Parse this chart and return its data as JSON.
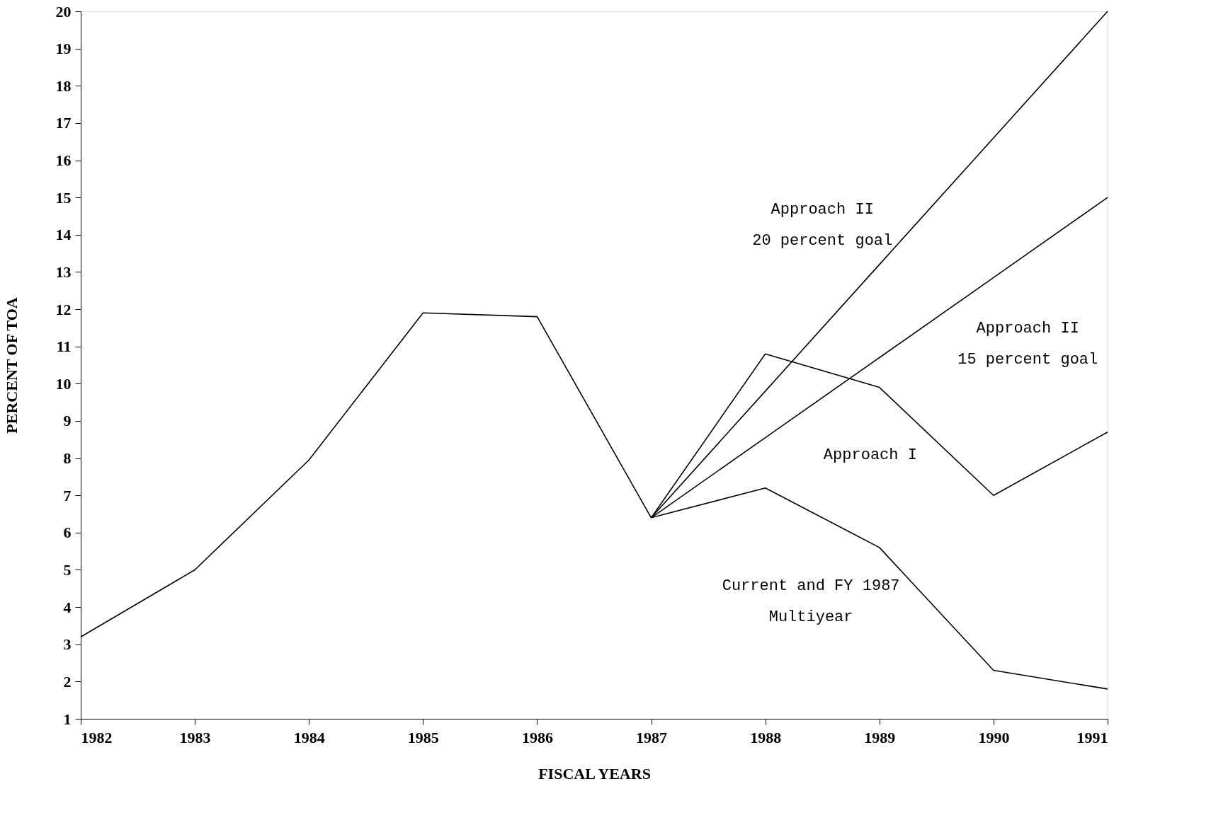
{
  "chart_data": {
    "type": "line",
    "xlabel": "FISCAL YEARS",
    "ylabel": "PERCENT OF TOA",
    "x": [
      1982,
      1983,
      1984,
      1985,
      1986,
      1987,
      1988,
      1989,
      1990,
      1991
    ],
    "xlim": [
      1982,
      1991
    ],
    "xticks": [
      1982,
      1983,
      1984,
      1985,
      1986,
      1987,
      1988,
      1989,
      1990,
      1991
    ],
    "ylim": [
      1,
      20
    ],
    "yticks": [
      1,
      2,
      3,
      4,
      5,
      6,
      7,
      8,
      9,
      10,
      11,
      12,
      13,
      14,
      15,
      16,
      17,
      18,
      19,
      20
    ],
    "grid": false,
    "legend": false,
    "marker": "none",
    "line_style": "solid",
    "series": [
      {
        "color": "#000000",
        "values": [
          3.2,
          5.0,
          7.95,
          11.9,
          11.8,
          6.4,
          null,
          null,
          null,
          null
        ]
      },
      {
        "name": "Approach I",
        "color": "#000000",
        "values": [
          null,
          null,
          null,
          null,
          null,
          6.4,
          10.8,
          9.9,
          7.0,
          8.7
        ]
      },
      {
        "name": "Current and FY 1987\nMultiyear",
        "color": "#000000",
        "values": [
          null,
          null,
          null,
          null,
          null,
          6.4,
          7.2,
          5.6,
          2.3,
          1.8
        ]
      },
      {
        "name": "Approach II\n20 percent goal",
        "color": "#000000",
        "values": [
          null,
          null,
          null,
          null,
          null,
          6.4,
          9.8,
          13.2,
          16.6,
          20
        ]
      },
      {
        "name": "Approach II\n15 percent goal",
        "color": "#000000",
        "values": [
          null,
          null,
          null,
          null,
          null,
          6.4,
          8.55,
          10.7,
          12.85,
          15
        ]
      }
    ]
  }
}
